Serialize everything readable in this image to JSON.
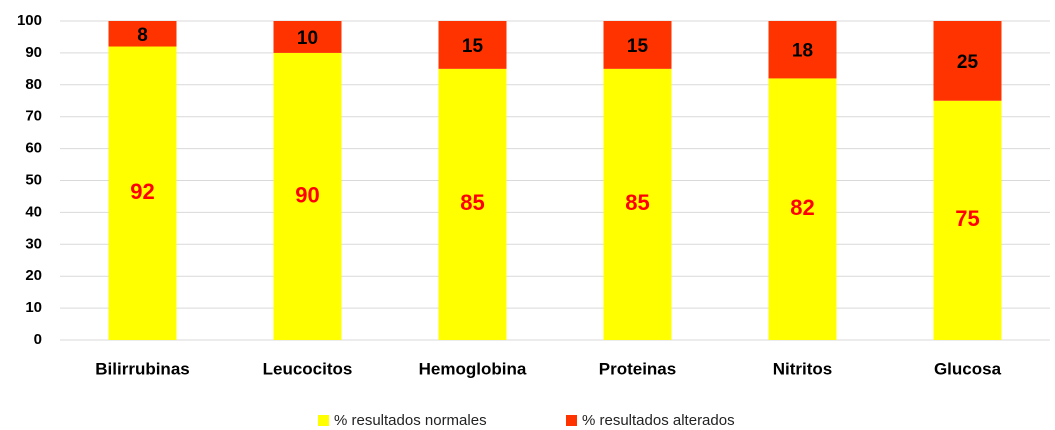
{
  "chart_data": {
    "type": "stacked_bar",
    "categories": [
      "Bilirrubinas",
      "Leucocitos",
      "Hemoglobina",
      "Proteinas",
      "Nitritos",
      "Glucosa"
    ],
    "series": [
      {
        "name": "% resultados normales",
        "color": "#ffff00",
        "label_color": "#ff0000",
        "values": [
          92,
          90,
          85,
          85,
          82,
          75
        ]
      },
      {
        "name": "% resultados alterados",
        "color": "#ff3300",
        "label_color": "#000000",
        "values": [
          8,
          10,
          15,
          15,
          18,
          25
        ]
      }
    ],
    "ylim": [
      0,
      100
    ],
    "yticks": [
      0,
      10,
      20,
      30,
      40,
      50,
      60,
      70,
      80,
      90,
      100
    ],
    "grid": true,
    "legend": "bottom"
  }
}
